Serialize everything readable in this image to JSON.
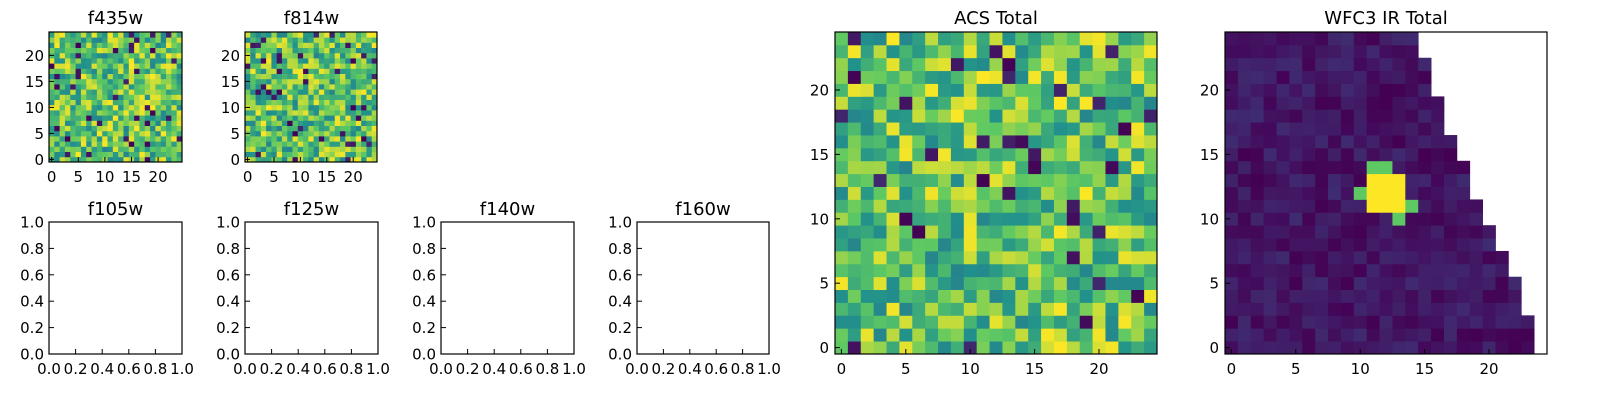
{
  "figure": {
    "background": "#ffffff"
  },
  "colormap": {
    "name": "viridis",
    "colors": [
      "#440154",
      "#3b528b",
      "#21918c",
      "#5ec962",
      "#fde725"
    ]
  },
  "chart_data": [
    {
      "type": "heatmap",
      "title": "f435w",
      "colormap": "viridis",
      "xlim": [
        0,
        24
      ],
      "ylim": [
        0,
        24
      ],
      "grid": false,
      "x_ticks": [
        "0",
        "5",
        "10",
        "15",
        "20"
      ],
      "y_ticks": [
        "0",
        "5",
        "10",
        "15",
        "20"
      ],
      "value_range": [
        0,
        1
      ],
      "field": "random-noise",
      "seed": 11,
      "low_value_fraction": 0.06
    },
    {
      "type": "heatmap",
      "title": "f814w",
      "colormap": "viridis",
      "xlim": [
        0,
        24
      ],
      "ylim": [
        0,
        24
      ],
      "grid": false,
      "x_ticks": [
        "0",
        "5",
        "10",
        "15",
        "20"
      ],
      "y_ticks": [
        "0",
        "5",
        "10",
        "15",
        "20"
      ],
      "value_range": [
        0,
        1
      ],
      "field": "random-noise",
      "seed": 29,
      "low_value_fraction": 0.06
    },
    {
      "type": "heatmap",
      "title": "f105w",
      "empty": true,
      "xlim": [
        0,
        1
      ],
      "ylim": [
        0,
        1
      ],
      "x_ticks": [
        "0.0",
        "0.2",
        "0.4",
        "0.6",
        "0.8",
        "1.0"
      ],
      "y_ticks": [
        "0.0",
        "0.2",
        "0.4",
        "0.6",
        "0.8",
        "1.0"
      ]
    },
    {
      "type": "heatmap",
      "title": "f125w",
      "empty": true,
      "xlim": [
        0,
        1
      ],
      "ylim": [
        0,
        1
      ],
      "x_ticks": [
        "0.0",
        "0.2",
        "0.4",
        "0.6",
        "0.8",
        "1.0"
      ],
      "y_ticks": [
        "0.0",
        "0.2",
        "0.4",
        "0.6",
        "0.8",
        "1.0"
      ]
    },
    {
      "type": "heatmap",
      "title": "f140w",
      "empty": true,
      "xlim": [
        0,
        1
      ],
      "ylim": [
        0,
        1
      ],
      "x_ticks": [
        "0.0",
        "0.2",
        "0.4",
        "0.6",
        "0.8",
        "1.0"
      ],
      "y_ticks": [
        "0.0",
        "0.2",
        "0.4",
        "0.6",
        "0.8",
        "1.0"
      ]
    },
    {
      "type": "heatmap",
      "title": "f160w",
      "empty": true,
      "xlim": [
        0,
        1
      ],
      "ylim": [
        0,
        1
      ],
      "x_ticks": [
        "0.0",
        "0.2",
        "0.4",
        "0.6",
        "0.8",
        "1.0"
      ],
      "y_ticks": [
        "0.0",
        "0.2",
        "0.4",
        "0.6",
        "0.8",
        "1.0"
      ]
    },
    {
      "type": "heatmap",
      "title": "ACS Total",
      "colormap": "viridis",
      "xlim": [
        0,
        24
      ],
      "ylim": [
        0,
        24
      ],
      "grid": false,
      "x_ticks": [
        "0",
        "5",
        "10",
        "15",
        "20"
      ],
      "y_ticks": [
        "0",
        "5",
        "10",
        "15",
        "20"
      ],
      "value_range": [
        0,
        1
      ],
      "field": "random-noise",
      "seed": 47,
      "low_value_fraction": 0.05
    },
    {
      "type": "heatmap",
      "title": "WFC3 IR Total",
      "colormap": "viridis",
      "xlim": [
        0,
        24
      ],
      "ylim": [
        0,
        24
      ],
      "grid": false,
      "x_ticks": [
        "0",
        "5",
        "10",
        "15",
        "20"
      ],
      "y_ticks": [
        "0",
        "5",
        "10",
        "15",
        "20"
      ],
      "value_range": [
        0,
        1
      ],
      "field": "faint-background-with-bright-source",
      "seed": 83,
      "background_range": [
        0.0,
        0.13
      ],
      "bright_source": {
        "x_range": [
          11,
          13
        ],
        "y_range": [
          11,
          13
        ],
        "value": 1.0,
        "center": [
          12,
          12
        ]
      },
      "source_halo": {
        "cells": [
          [
            11,
            14
          ],
          [
            10,
            12
          ],
          [
            14,
            11
          ],
          [
            13,
            10
          ],
          [
            12,
            14
          ]
        ],
        "value": 0.75
      },
      "data_edge_last_filled_column_by_row": [
        23,
        23,
        23,
        22,
        22,
        22,
        21,
        21,
        20,
        20,
        19,
        19,
        18,
        18,
        18,
        17,
        17,
        16,
        16,
        16,
        15,
        15,
        15,
        14,
        14
      ]
    }
  ]
}
